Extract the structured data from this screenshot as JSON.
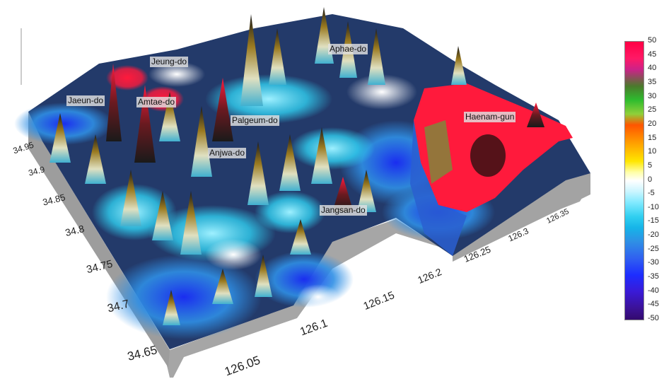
{
  "place_labels": [
    {
      "name": "Jeung-do"
    },
    {
      "name": "Aphae-do"
    },
    {
      "name": "Jaeun-do"
    },
    {
      "name": "Amtae-do"
    },
    {
      "name": "Palgeum-do"
    },
    {
      "name": "Haenam-gun"
    },
    {
      "name": "Anjwa-do"
    },
    {
      "name": "Jangsan-do"
    }
  ],
  "latitude_axis": {
    "ticks": [
      "34.95",
      "34.9",
      "34.85",
      "34.8",
      "34.75",
      "34.7",
      "34.65"
    ]
  },
  "longitude_axis": {
    "ticks": [
      "126.05",
      "126.1",
      "126.15",
      "126.2",
      "126.25",
      "126.3",
      "126.35"
    ]
  },
  "colorbar": {
    "min": -50,
    "max": 50,
    "ticks": [
      "50",
      "45",
      "40",
      "35",
      "30",
      "25",
      "20",
      "15",
      "10",
      "5",
      "0",
      "-5",
      "-10",
      "-15",
      "-20",
      "-25",
      "-30",
      "-35",
      "-40",
      "-45",
      "-50"
    ]
  },
  "colors": {
    "high": "#ff1a3c",
    "low": "#2a16c8",
    "base_wall": "#a6a6a6"
  }
}
